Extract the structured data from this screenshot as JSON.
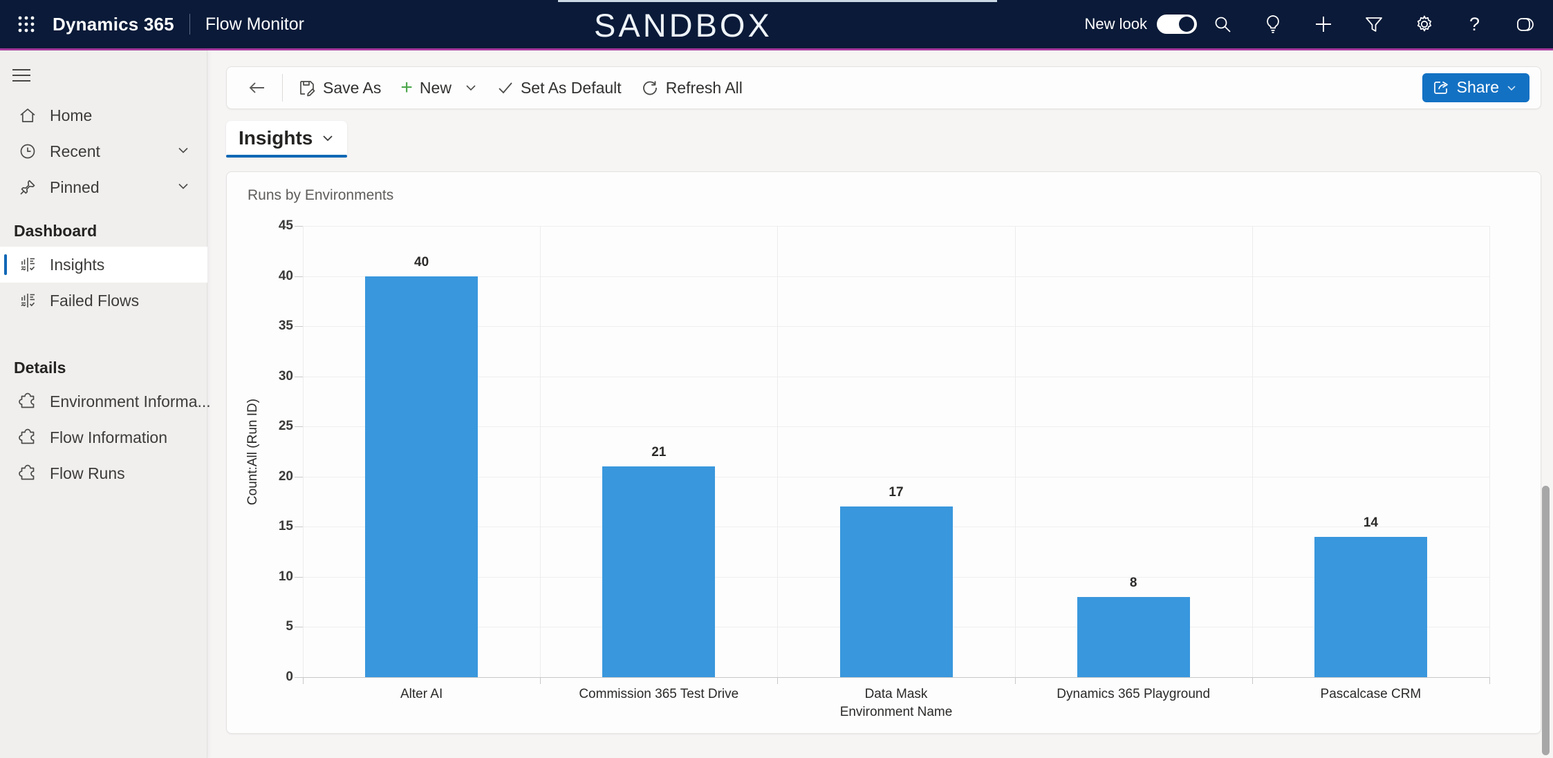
{
  "header": {
    "app_name": "Dynamics 365",
    "area_title": "Flow Monitor",
    "environment_banner": "SANDBOX",
    "new_look_label": "New look",
    "new_look_on": true,
    "help_glyph": "?",
    "icons": [
      "search",
      "lightbulb",
      "add",
      "filter",
      "settings",
      "help",
      "copilot"
    ],
    "colors": {
      "header_bg": "#0a1a38",
      "accent_line": "#a83a9f"
    }
  },
  "sidebar": {
    "items": [
      {
        "label": "Home",
        "icon": "home-icon"
      },
      {
        "label": "Recent",
        "icon": "clock-icon",
        "expandable": true
      },
      {
        "label": "Pinned",
        "icon": "pin-icon",
        "expandable": true
      }
    ],
    "sections": [
      {
        "title": "Dashboard",
        "items": [
          {
            "label": "Insights",
            "icon": "dashboard-icon",
            "selected": true
          },
          {
            "label": "Failed Flows",
            "icon": "dashboard-icon",
            "selected": false
          }
        ]
      },
      {
        "title": "Details",
        "items": [
          {
            "label": "Environment Informa...",
            "icon": "puzzle-icon",
            "selected": false
          },
          {
            "label": "Flow Information",
            "icon": "puzzle-icon",
            "selected": false
          },
          {
            "label": "Flow Runs",
            "icon": "puzzle-icon",
            "selected": false
          }
        ]
      }
    ]
  },
  "toolbar": {
    "save_as": "Save As",
    "new": "New",
    "set_as_default": "Set As Default",
    "refresh_all": "Refresh All",
    "share": "Share"
  },
  "view": {
    "title": "Insights"
  },
  "chart_data": {
    "type": "bar",
    "title": "Runs by Environments",
    "categories": [
      "Alter AI",
      "Commission 365 Test Drive",
      "Data Mask",
      "Dynamics 365 Playground",
      "Pascalcase CRM"
    ],
    "values": [
      40,
      21,
      17,
      8,
      14
    ],
    "xlabel": "Environment Name",
    "ylabel": "Count:All (Run ID)",
    "ylim": [
      0,
      45
    ],
    "yticks": [
      0,
      5,
      10,
      15,
      20,
      25,
      30,
      35,
      40,
      45
    ],
    "grid": true,
    "legend": "none",
    "bar_color": "#3997dd"
  }
}
